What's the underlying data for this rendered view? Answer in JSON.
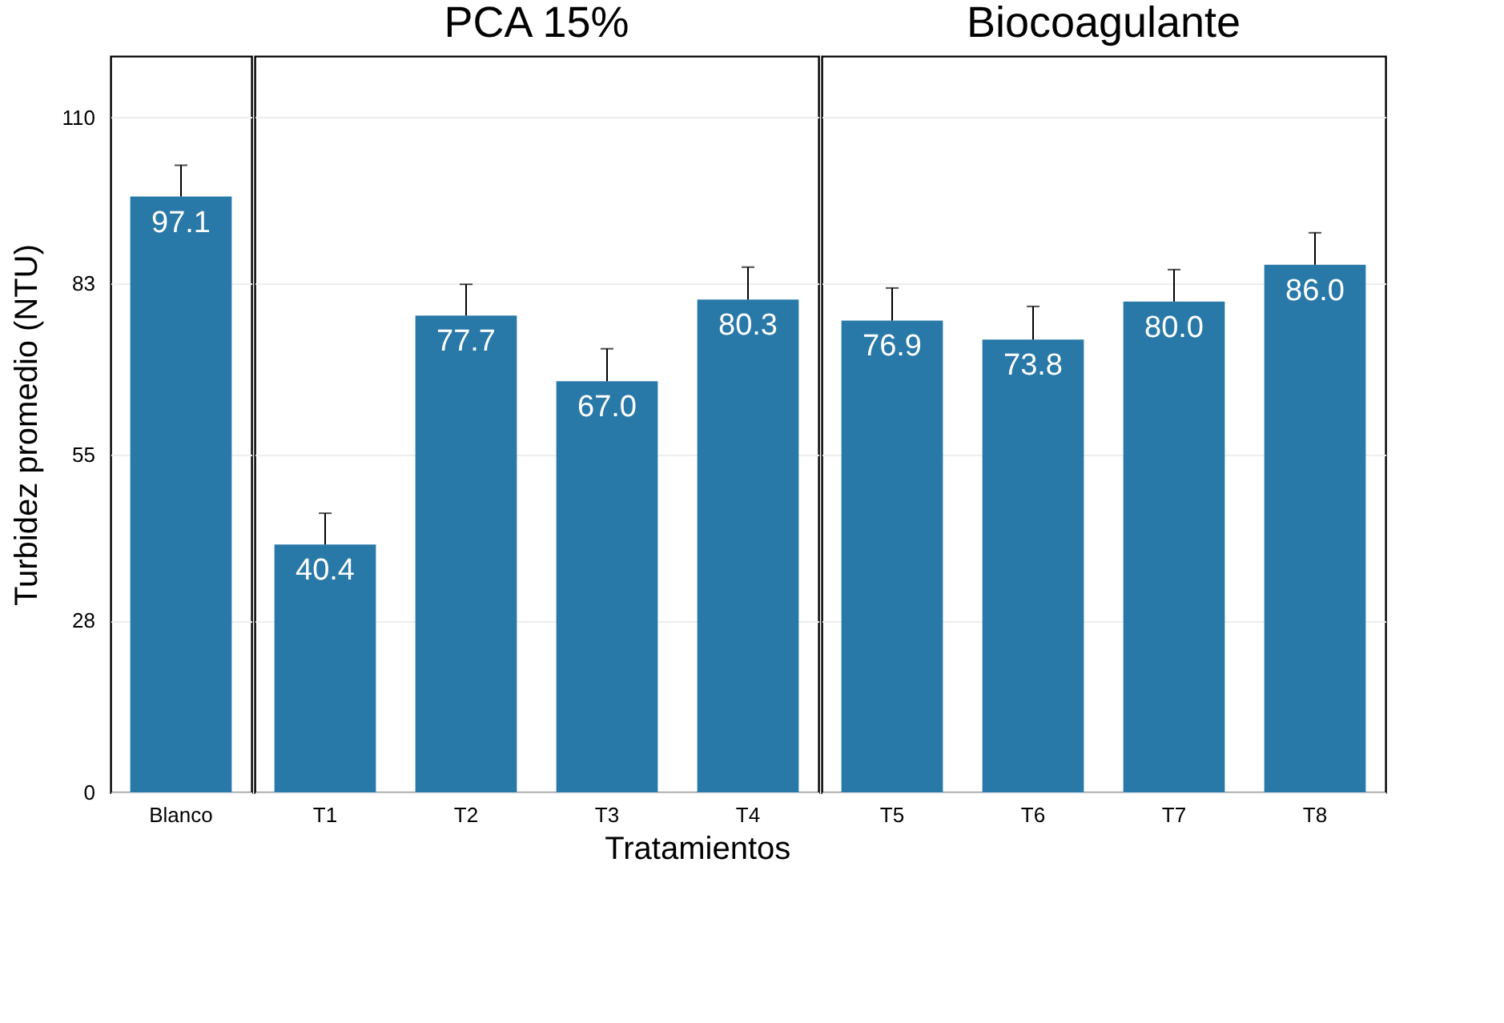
{
  "chart_data": [
    {
      "type": "bar",
      "ylabel": "Turbidez promedio (NTU)",
      "categories": [
        "Blanco"
      ],
      "values": [
        97.1
      ],
      "color": "#2878a8",
      "errors": [
        [
          97.1,
          102.2
        ]
      ],
      "value_labels": [
        "97.1"
      ],
      "ylim": [
        0,
        120
      ],
      "yticks": [
        0,
        28,
        55,
        83,
        110
      ],
      "grid": "y"
    },
    {
      "type": "bar",
      "title": "PCA 15%",
      "xlabel": "Tratamientos",
      "categories": [
        "T1",
        "T2",
        "T3",
        "T4"
      ],
      "values": [
        40.4,
        77.7,
        67.0,
        80.3
      ],
      "color": "#2878a8",
      "errors": [
        [
          40.4,
          45.5
        ],
        [
          77.7,
          82.8
        ],
        [
          67.0,
          72.3
        ],
        [
          80.3,
          85.6
        ]
      ],
      "value_labels": [
        "40.4",
        "77.7",
        "67.0",
        "80.3"
      ],
      "ylim": [
        0,
        120
      ],
      "yticks": [
        0,
        28,
        55,
        83,
        110
      ],
      "grid": "y",
      "tick_labels": "x"
    },
    {
      "type": "bar",
      "title": "Biocoagulante",
      "categories": [
        "T5",
        "T6",
        "T7",
        "T8"
      ],
      "values": [
        76.9,
        73.8,
        80.0,
        86.0
      ],
      "color": "#2878a8",
      "errors": [
        [
          76.9,
          82.2
        ],
        [
          73.8,
          79.2
        ],
        [
          80.0,
          85.2
        ],
        [
          86.0,
          91.2
        ]
      ],
      "value_labels": [
        "76.9",
        "73.8",
        "80.0",
        "86.0"
      ],
      "ylim": [
        0,
        120
      ],
      "yticks": [
        0,
        28,
        55,
        83,
        110
      ],
      "grid": "y",
      "tick_labels": "x"
    }
  ]
}
